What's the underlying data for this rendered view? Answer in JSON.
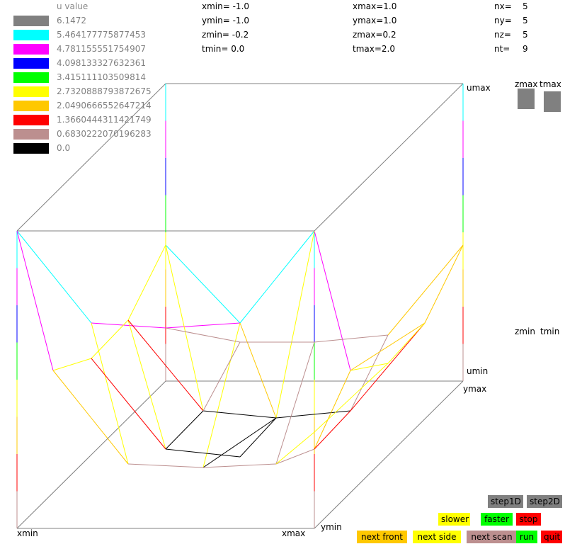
{
  "legend": {
    "title": "u value",
    "items": [
      {
        "value": "6.1472",
        "color": "#808080"
      },
      {
        "value": "5.464177775877453",
        "color": "#00ffff"
      },
      {
        "value": "4.781155551754907",
        "color": "#ff00ff"
      },
      {
        "value": "4.098133327632361",
        "color": "#0000ff"
      },
      {
        "value": "3.415111103509814",
        "color": "#00ff00"
      },
      {
        "value": "2.7320888793872675",
        "color": "#ffff00"
      },
      {
        "value": "2.0490666552647214",
        "color": "#ffc800"
      },
      {
        "value": "1.3660444311421749",
        "color": "#ff0000"
      },
      {
        "value": "0.6830222070196283",
        "color": "#bc8f8f"
      },
      {
        "value": "0.0",
        "color": "#000000"
      }
    ]
  },
  "params": {
    "xmin": "xmin= -1.0",
    "ymin": "ymin= -1.0",
    "zmin": "zmin= -0.2",
    "tmin": "tmin= 0.0",
    "xmax": "xmax=1.0",
    "ymax": "ymax=1.0",
    "zmax": "zmax=0.2",
    "tmax": "tmax=2.0",
    "nx_label": "nx=",
    "nx": "5",
    "ny_label": "ny=",
    "ny": "5",
    "nz_label": "nz=",
    "nz": "5",
    "nt_label": "nt=",
    "nt": "9"
  },
  "axes": {
    "umax": "umax",
    "umin": "umin",
    "ymax": "ymax",
    "ymin": "ymin",
    "xmin": "xmin",
    "xmax": "xmax"
  },
  "slider_labels": {
    "zmax": "zmax",
    "tmax": "tmax",
    "zmin": "zmin",
    "tmin": "tmin"
  },
  "buttons": {
    "step1d": "step1D",
    "step2d": "step2D",
    "slower": "slower",
    "faster": "faster",
    "stop": "stop",
    "next_front": "next front",
    "next_side": "next side",
    "next_scan": "next scan",
    "run": "run",
    "quit": "quit"
  }
}
